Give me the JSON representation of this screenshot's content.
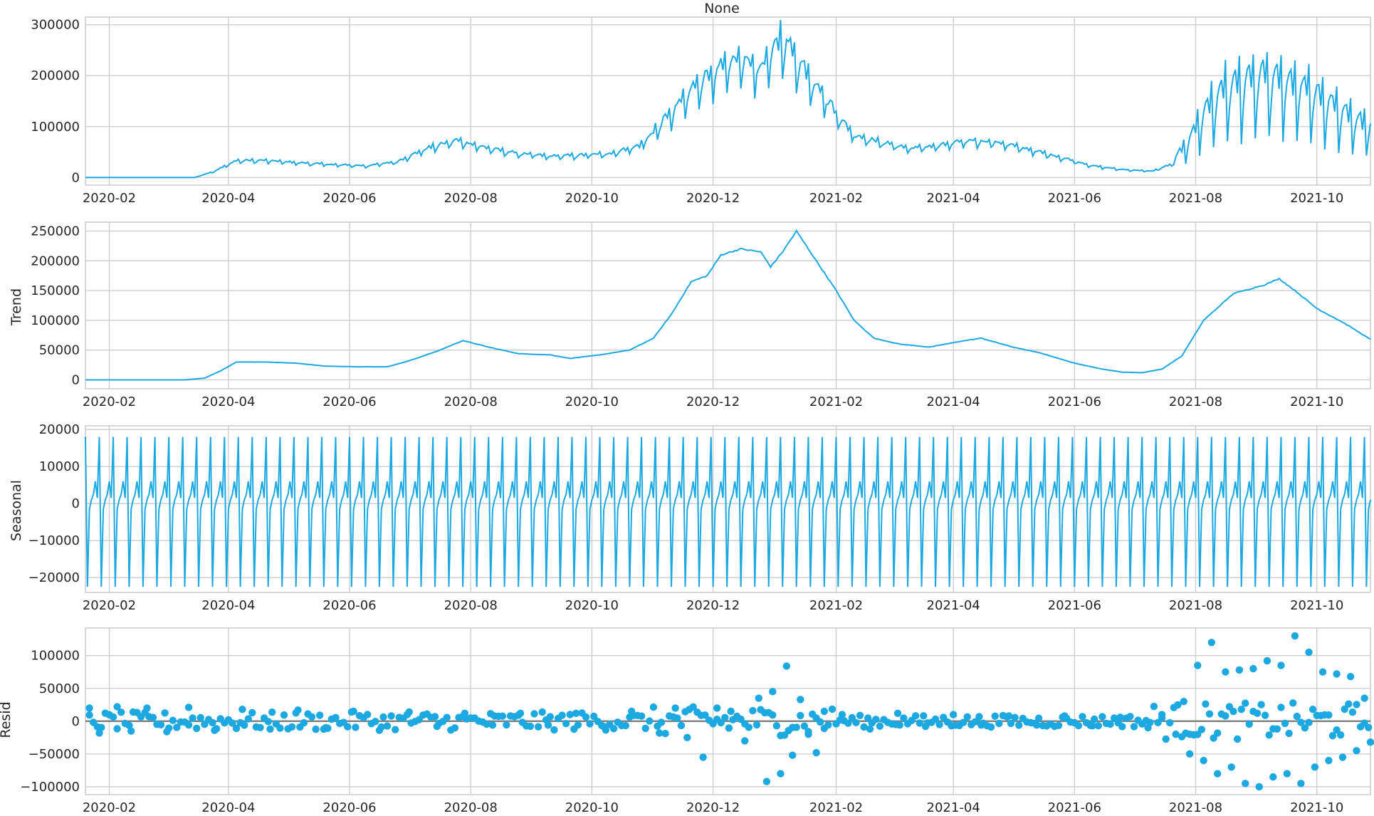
{
  "chart_data": [
    {
      "type": "line",
      "title": "None",
      "ylabel": "",
      "ylim": [
        -15000,
        315000
      ],
      "yticks": [
        0,
        100000,
        200000,
        300000
      ],
      "xticks": [
        "2020-02",
        "2020-04",
        "2020-06",
        "2020-08",
        "2020-10",
        "2020-12",
        "2021-02",
        "2021-04",
        "2021-06",
        "2021-08",
        "2021-10"
      ],
      "color": "#1CA9E1",
      "grid": true,
      "x": [
        "2020-01-20",
        "2020-03-15",
        "2020-03-25",
        "2020-04-05",
        "2020-04-20",
        "2020-05-10",
        "2020-05-25",
        "2020-06-10",
        "2020-06-25",
        "2020-07-10",
        "2020-07-25",
        "2020-08-10",
        "2020-08-25",
        "2020-09-10",
        "2020-09-25",
        "2020-10-10",
        "2020-10-25",
        "2020-11-05",
        "2020-11-15",
        "2020-11-25",
        "2020-12-05",
        "2020-12-15",
        "2020-12-25",
        "2021-01-05",
        "2021-01-10",
        "2021-01-20",
        "2021-02-01",
        "2021-02-10",
        "2021-02-25",
        "2021-03-10",
        "2021-03-25",
        "2021-04-10",
        "2021-04-25",
        "2021-05-10",
        "2021-05-25",
        "2021-06-10",
        "2021-06-25",
        "2021-07-10",
        "2021-07-20",
        "2021-07-28",
        "2021-08-05",
        "2021-08-15",
        "2021-08-25",
        "2021-09-05",
        "2021-09-15",
        "2021-09-25",
        "2021-10-05",
        "2021-10-15",
        "2021-10-25"
      ],
      "values": [
        0,
        0,
        12000,
        32000,
        32000,
        27000,
        24000,
        22000,
        30000,
        55000,
        70000,
        55000,
        45000,
        40000,
        42000,
        45000,
        60000,
        100000,
        140000,
        180000,
        200000,
        220000,
        200000,
        260000,
        230000,
        180000,
        120000,
        80000,
        65000,
        55000,
        60000,
        70000,
        65000,
        52000,
        38000,
        22000,
        15000,
        12000,
        25000,
        60000,
        110000,
        150000,
        160000,
        170000,
        160000,
        150000,
        130000,
        110000,
        90000
      ]
    },
    {
      "type": "line",
      "title": "",
      "ylabel": "Trend",
      "ylim": [
        -15000,
        265000
      ],
      "yticks": [
        0,
        50000,
        100000,
        150000,
        200000,
        250000
      ],
      "xticks": [
        "2020-02",
        "2020-04",
        "2020-06",
        "2020-08",
        "2020-10",
        "2020-12",
        "2021-02",
        "2021-04",
        "2021-06",
        "2021-08",
        "2021-10"
      ],
      "color": "#1CA9E1",
      "grid": true,
      "x": [
        "2020-01-20",
        "2020-03-10",
        "2020-03-20",
        "2020-03-28",
        "2020-04-05",
        "2020-04-20",
        "2020-05-05",
        "2020-05-20",
        "2020-06-05",
        "2020-06-20",
        "2020-07-01",
        "2020-07-15",
        "2020-07-28",
        "2020-08-10",
        "2020-08-25",
        "2020-09-10",
        "2020-09-20",
        "2020-10-05",
        "2020-10-20",
        "2020-11-01",
        "2020-11-10",
        "2020-11-20",
        "2020-11-28",
        "2020-12-05",
        "2020-12-15",
        "2020-12-25",
        "2020-12-30",
        "2021-01-05",
        "2021-01-12",
        "2021-01-20",
        "2021-02-01",
        "2021-02-10",
        "2021-02-20",
        "2021-03-05",
        "2021-03-20",
        "2021-04-05",
        "2021-04-15",
        "2021-05-01",
        "2021-05-15",
        "2021-06-01",
        "2021-06-15",
        "2021-06-25",
        "2021-07-05",
        "2021-07-15",
        "2021-07-25",
        "2021-08-05",
        "2021-08-20",
        "2021-09-05",
        "2021-09-12",
        "2021-09-20",
        "2021-10-01",
        "2021-10-15",
        "2021-10-28"
      ],
      "values": [
        0,
        0,
        3000,
        15000,
        30000,
        30000,
        28000,
        23000,
        22000,
        22000,
        32000,
        48000,
        66000,
        55000,
        44000,
        42000,
        36000,
        42000,
        50000,
        70000,
        110000,
        165000,
        175000,
        210000,
        220000,
        215000,
        190000,
        215000,
        250000,
        210000,
        150000,
        100000,
        70000,
        60000,
        55000,
        65000,
        70000,
        55000,
        45000,
        28000,
        18000,
        13000,
        12000,
        18000,
        40000,
        100000,
        145000,
        160000,
        170000,
        150000,
        120000,
        95000,
        68000
      ]
    },
    {
      "type": "line",
      "title": "",
      "ylabel": "Seasonal",
      "ylim": [
        -24000,
        21000
      ],
      "yticks": [
        -20000,
        -10000,
        0,
        10000,
        20000
      ],
      "xticks": [
        "2020-02",
        "2020-04",
        "2020-06",
        "2020-08",
        "2020-10",
        "2020-12",
        "2021-02",
        "2021-04",
        "2021-06",
        "2021-08",
        "2021-10"
      ],
      "color": "#1CA9E1",
      "grid": true,
      "period_days": 7,
      "weekly_pattern": [
        18000,
        -22500,
        -1500,
        1000,
        2500,
        6000,
        1500
      ],
      "start": "2020-01-20",
      "end": "2021-10-28"
    },
    {
      "type": "scatter",
      "title": "",
      "ylabel": "Resid",
      "ylim": [
        -112000,
        142000
      ],
      "yticks": [
        -100000,
        -50000,
        0,
        50000,
        100000
      ],
      "xticks": [
        "2020-02",
        "2020-04",
        "2020-06",
        "2020-08",
        "2020-10",
        "2020-12",
        "2021-02",
        "2021-04",
        "2021-06",
        "2021-08",
        "2021-10"
      ],
      "color": "#1CA9E1",
      "zero_line_color": "#7f7f7f",
      "grid": true,
      "x": [
        "2020-01-22",
        "2020-01-27",
        "2020-02-05",
        "2020-02-12",
        "2020-02-20",
        "2020-03-01",
        "2020-03-12",
        "2020-03-25",
        "2020-04-08",
        "2020-04-22",
        "2020-05-06",
        "2020-05-20",
        "2020-06-03",
        "2020-06-17",
        "2020-07-01",
        "2020-07-15",
        "2020-07-29",
        "2020-08-12",
        "2020-08-26",
        "2020-09-09",
        "2020-09-23",
        "2020-10-07",
        "2020-10-21",
        "2020-11-04",
        "2020-11-12",
        "2020-11-18",
        "2020-11-26",
        "2020-12-03",
        "2020-12-10",
        "2020-12-17",
        "2020-12-24",
        "2020-12-28",
        "2020-12-31",
        "2021-01-04",
        "2021-01-07",
        "2021-01-10",
        "2021-01-14",
        "2021-01-18",
        "2021-01-22",
        "2021-01-26",
        "2021-02-04",
        "2021-02-18",
        "2021-03-04",
        "2021-03-18",
        "2021-04-01",
        "2021-04-15",
        "2021-04-29",
        "2021-05-13",
        "2021-05-27",
        "2021-06-10",
        "2021-06-24",
        "2021-07-08",
        "2021-07-15",
        "2021-07-22",
        "2021-07-26",
        "2021-07-29",
        "2021-08-02",
        "2021-08-05",
        "2021-08-09",
        "2021-08-12",
        "2021-08-16",
        "2021-08-19",
        "2021-08-23",
        "2021-08-26",
        "2021-08-30",
        "2021-09-02",
        "2021-09-06",
        "2021-09-09",
        "2021-09-13",
        "2021-09-16",
        "2021-09-20",
        "2021-09-23",
        "2021-09-27",
        "2021-09-30",
        "2021-10-04",
        "2021-10-07",
        "2021-10-11",
        "2021-10-14",
        "2021-10-18",
        "2021-10-21",
        "2021-10-25",
        "2021-10-28"
      ],
      "values": [
        20000,
        -18000,
        22000,
        -15000,
        20000,
        -16000,
        21000,
        -14000,
        18000,
        -12000,
        17000,
        -10000,
        15000,
        -9000,
        14000,
        -8000,
        12000,
        -6000,
        12000,
        -6000,
        12000,
        -8000,
        15000,
        -18000,
        20000,
        -25000,
        -55000,
        20000,
        15000,
        -30000,
        35000,
        -92000,
        45000,
        -80000,
        84000,
        -52000,
        33000,
        -20000,
        -48000,
        15000,
        10000,
        -12000,
        12000,
        -8000,
        10000,
        -6000,
        8000,
        -6000,
        8000,
        -7000,
        6000,
        -10000,
        10000,
        -20000,
        30000,
        -50000,
        85000,
        -60000,
        120000,
        -80000,
        75000,
        -70000,
        78000,
        -95000,
        80000,
        -100000,
        92000,
        -85000,
        85000,
        -80000,
        130000,
        -95000,
        105000,
        -70000,
        75000,
        -60000,
        72000,
        -55000,
        68000,
        -45000,
        35000,
        -32000
      ]
    }
  ]
}
